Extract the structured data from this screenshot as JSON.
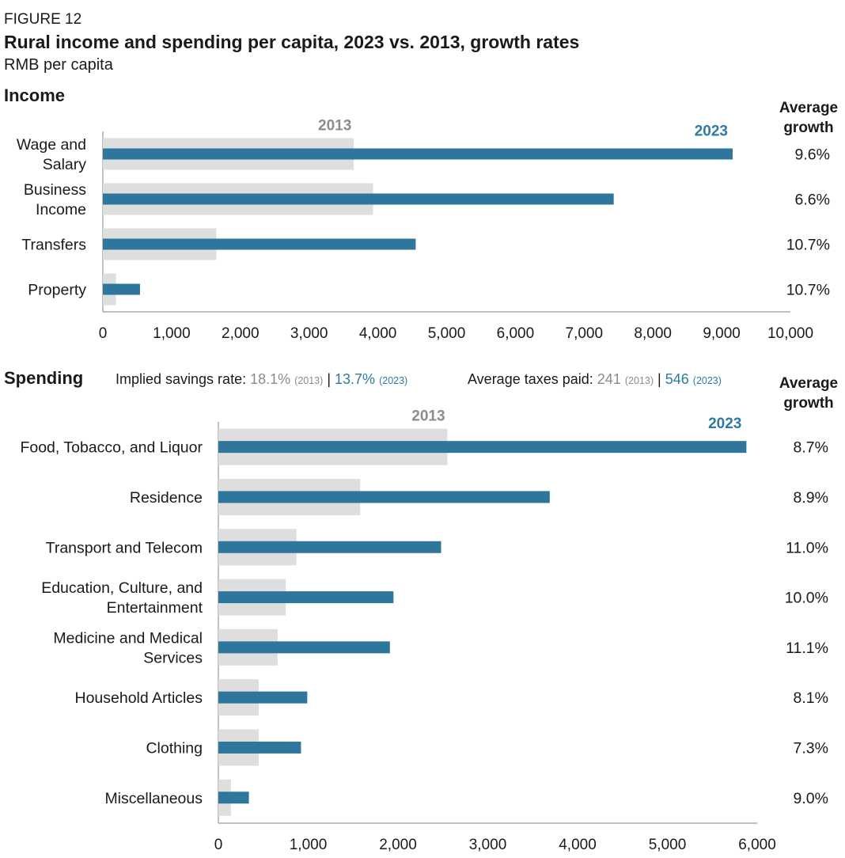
{
  "figure_label": "FIGURE 12",
  "title": "Rural income and spending per capita, 2023 vs. 2013, growth rates",
  "subtitle": "RMB per capita",
  "colors": {
    "y2013": "#dedede",
    "y2023": "#2e769c",
    "label2013": "#8c8c8c",
    "label2023": "#2e7aa0",
    "axis": "#9a9a9a"
  },
  "growth_header": "Average growth",
  "income": {
    "heading": "Income"
  },
  "spending": {
    "heading": "Spending",
    "savings_label": "Implied savings rate:",
    "savings_2013": "18.1%",
    "savings_2023": "13.7%",
    "taxes_label": "Average taxes paid:",
    "taxes_2013": "241",
    "taxes_2023": "546",
    "tag_2013": "(2013)",
    "tag_2023": "(2023)",
    "separator": "|"
  },
  "chart_data": [
    {
      "type": "bar",
      "orientation": "horizontal",
      "section": "Income",
      "categories": [
        "Wage and Salary",
        "Business Income",
        "Transfers",
        "Property"
      ],
      "series": [
        {
          "name": "2013",
          "values": [
            3650,
            3930,
            1650,
            190
          ]
        },
        {
          "name": "2023",
          "values": [
            9160,
            7430,
            4550,
            540
          ]
        }
      ],
      "growth": [
        "9.6%",
        "6.6%",
        "10.7%",
        "10.7%"
      ],
      "xlim": [
        0,
        10000
      ],
      "xticks": [
        0,
        1000,
        2000,
        3000,
        4000,
        5000,
        6000,
        7000,
        8000,
        9000,
        10000
      ],
      "xtick_labels": [
        "0",
        "1,000",
        "2,000",
        "3,000",
        "4,000",
        "5,000",
        "6,000",
        "7,000",
        "8,000",
        "9,000",
        "10,000"
      ]
    },
    {
      "type": "bar",
      "orientation": "horizontal",
      "section": "Spending",
      "categories": [
        "Food, Tobacco, and Liquor",
        "Residence",
        "Transport and Telecom",
        "Education, Culture, and Entertainment",
        "Medicine and Medical Services",
        "Household Articles",
        "Clothing",
        "Miscellaneous"
      ],
      "series": [
        {
          "name": "2013",
          "values": [
            2550,
            1580,
            870,
            750,
            660,
            450,
            450,
            140
          ]
        },
        {
          "name": "2023",
          "values": [
            5880,
            3690,
            2480,
            1950,
            1910,
            990,
            920,
            340
          ]
        }
      ],
      "growth": [
        "8.7%",
        "8.9%",
        "11.0%",
        "10.0%",
        "11.1%",
        "8.1%",
        "7.3%",
        "9.0%"
      ],
      "xlim": [
        0,
        6000
      ],
      "xticks": [
        0,
        1000,
        2000,
        3000,
        4000,
        5000,
        6000
      ],
      "xtick_labels": [
        "0",
        "1,000",
        "2,000",
        "3,000",
        "4,000",
        "5,000",
        "6,000"
      ]
    }
  ]
}
